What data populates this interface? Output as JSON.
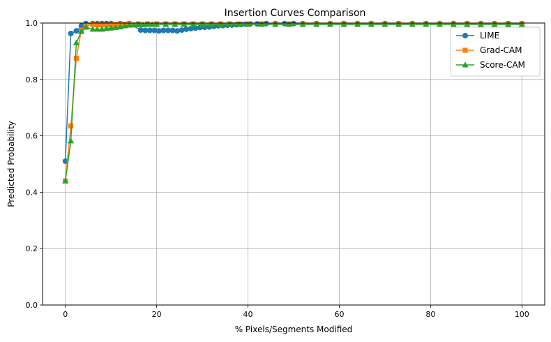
{
  "chart_data": {
    "type": "line",
    "title": "Insertion Curves Comparison",
    "xlabel": "% Pixels/Segments Modified",
    "ylabel": "Predicted Probability",
    "xlim": [
      -5,
      105
    ],
    "ylim": [
      0,
      1.0
    ],
    "xticks": [
      0,
      20,
      40,
      60,
      80,
      100
    ],
    "yticks": [
      0.0,
      0.2,
      0.4,
      0.6,
      0.8,
      1.0
    ],
    "xtick_labels": [
      "0",
      "20",
      "40",
      "60",
      "80",
      "100"
    ],
    "ytick_labels": [
      "0.0",
      "0.2",
      "0.4",
      "0.6",
      "0.8",
      "1.0"
    ],
    "grid": true,
    "legend_position": "top-right",
    "series": [
      {
        "name": "LIME",
        "color": "#1f77b4",
        "marker": "circle",
        "x": [
          0,
          1.2,
          2.4,
          3.5,
          4.5,
          6,
          7,
          8,
          9,
          10,
          12,
          14,
          16.5,
          17.5,
          18.5,
          19.5,
          20.5,
          21.5,
          22.5,
          23.5,
          24.5,
          25.5,
          26.5,
          27.5,
          28.5,
          29.5,
          30.5,
          31.5,
          32.5,
          33.5,
          34.5,
          35.5,
          36.5,
          37.5,
          38.5,
          39.5,
          40.5,
          42,
          44,
          46,
          48,
          50,
          52,
          55,
          58,
          61,
          64,
          67,
          70,
          73,
          76,
          79,
          82,
          85,
          88,
          91,
          94,
          97,
          100
        ],
        "y": [
          0.51,
          0.963,
          0.972,
          0.99,
          0.998,
          0.998,
          0.998,
          0.998,
          0.998,
          0.998,
          0.998,
          0.998,
          0.975,
          0.974,
          0.974,
          0.974,
          0.972,
          0.974,
          0.974,
          0.974,
          0.972,
          0.975,
          0.978,
          0.98,
          0.982,
          0.984,
          0.985,
          0.986,
          0.988,
          0.99,
          0.991,
          0.992,
          0.993,
          0.994,
          0.995,
          0.996,
          0.997,
          0.997,
          0.998,
          0.998,
          0.998,
          0.998,
          0.998,
          0.998,
          0.998,
          0.998,
          0.998,
          0.998,
          0.998,
          0.998,
          0.998,
          0.998,
          0.998,
          0.998,
          0.998,
          0.998,
          0.998,
          0.998,
          0.998
        ]
      },
      {
        "name": "Grad-CAM",
        "color": "#ff7f0e",
        "marker": "square",
        "x": [
          0,
          1.2,
          2.4,
          3.5,
          4.5,
          6,
          7,
          8,
          9,
          10,
          11,
          12,
          13,
          14,
          16,
          18,
          20,
          22,
          24,
          26,
          28,
          30,
          32,
          34,
          36,
          38,
          40,
          43,
          46,
          49,
          52,
          55,
          58,
          61,
          64,
          67,
          70,
          73,
          76,
          79,
          82,
          85,
          88,
          91,
          94,
          97,
          100
        ],
        "y": [
          0.44,
          0.635,
          0.875,
          0.975,
          0.99,
          0.995,
          0.994,
          0.993,
          0.993,
          0.994,
          0.995,
          0.996,
          0.996,
          0.997,
          0.997,
          0.997,
          0.997,
          0.997,
          0.997,
          0.997,
          0.997,
          0.997,
          0.997,
          0.997,
          0.997,
          0.997,
          0.997,
          0.997,
          0.997,
          0.997,
          0.997,
          0.997,
          0.997,
          0.997,
          0.997,
          0.997,
          0.997,
          0.997,
          0.997,
          0.997,
          0.997,
          0.997,
          0.997,
          0.997,
          0.997,
          0.997,
          0.997
        ]
      },
      {
        "name": "Score-CAM",
        "color": "#2ca02c",
        "marker": "triangle",
        "x": [
          0,
          1.2,
          2.4,
          3.5,
          4.5,
          6,
          7,
          8,
          9,
          10,
          11,
          12,
          13,
          14,
          15,
          16,
          17,
          18,
          19,
          20,
          22,
          24,
          26,
          28,
          30,
          32,
          34,
          36,
          38,
          40,
          43,
          46,
          49,
          52,
          55,
          58,
          61,
          64,
          67,
          70,
          73,
          76,
          79,
          82,
          85,
          88,
          91,
          94,
          97,
          100
        ],
        "y": [
          0.44,
          0.582,
          0.93,
          0.97,
          0.985,
          0.978,
          0.978,
          0.978,
          0.98,
          0.982,
          0.984,
          0.986,
          0.99,
          0.992,
          0.993,
          0.994,
          0.994,
          0.995,
          0.995,
          0.995,
          0.995,
          0.995,
          0.995,
          0.995,
          0.995,
          0.995,
          0.995,
          0.995,
          0.995,
          0.995,
          0.995,
          0.995,
          0.995,
          0.995,
          0.995,
          0.995,
          0.995,
          0.995,
          0.995,
          0.995,
          0.995,
          0.995,
          0.995,
          0.995,
          0.995,
          0.995,
          0.995,
          0.995,
          0.995,
          0.995
        ]
      }
    ]
  }
}
